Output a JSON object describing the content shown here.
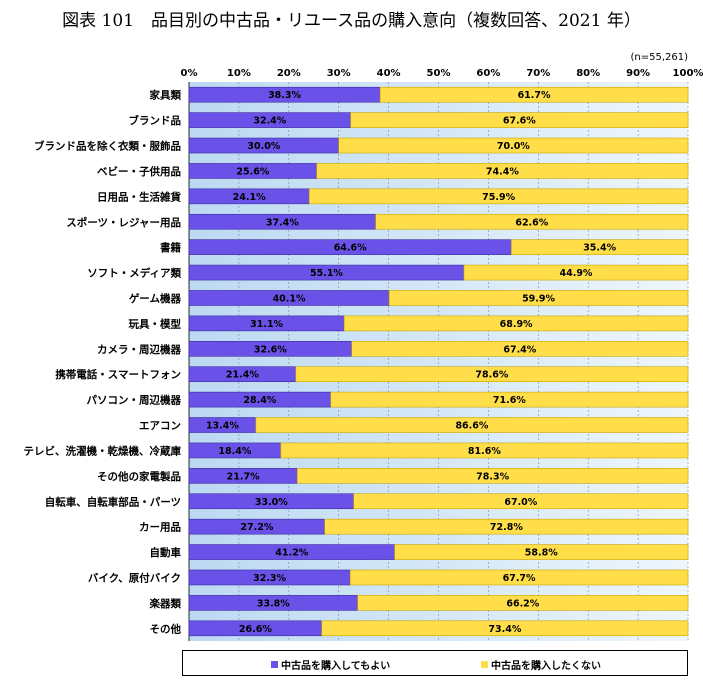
{
  "title": "図表 101　品目別の中古品・リユース品の購入意向（複数回答、2021 年）",
  "note": "(n=55,261)",
  "colors": {
    "bar_a": "#6a52e8",
    "bar_b": "#ffde4a"
  },
  "chart_data": {
    "type": "bar",
    "orientation": "horizontal",
    "stacked": true,
    "xlim": [
      0,
      100
    ],
    "x_ticks": [
      "0%",
      "10%",
      "20%",
      "30%",
      "40%",
      "50%",
      "60%",
      "70%",
      "80%",
      "90%",
      "100%"
    ],
    "legend_position": "bottom",
    "categories": [
      "家具類",
      "ブランド品",
      "ブランド品を除く衣類・服飾品",
      "ベビー・子供用品",
      "日用品・生活雑貨",
      "スポーツ・レジャー用品",
      "書籍",
      "ソフト・メディア類",
      "ゲーム機器",
      "玩具・模型",
      "カメラ・周辺機器",
      "携帯電話・スマートフォン",
      "パソコン・周辺機器",
      "エアコン",
      "テレビ、洗濯機・乾燥機、冷蔵庫",
      "その他の家電製品",
      "自転車、自転車部品・パーツ",
      "カー用品",
      "自動車",
      "バイク、原付バイク",
      "楽器類",
      "その他"
    ],
    "series": [
      {
        "name": "中古品を購入してもよい",
        "values": [
          38.3,
          32.4,
          30.0,
          25.6,
          24.1,
          37.4,
          64.6,
          55.1,
          40.1,
          31.1,
          32.6,
          21.4,
          28.4,
          13.4,
          18.4,
          21.7,
          33.0,
          27.2,
          41.2,
          32.3,
          33.8,
          26.6
        ],
        "labels": [
          "38.3%",
          "32.4%",
          "30.0%",
          "25.6%",
          "24.1%",
          "37.4%",
          "64.6%",
          "55.1%",
          "40.1%",
          "31.1%",
          "32.6%",
          "21.4%",
          "28.4%",
          "13.4%",
          "18.4%",
          "21.7%",
          "33.0%",
          "27.2%",
          "41.2%",
          "32.3%",
          "33.8%",
          "26.6%"
        ]
      },
      {
        "name": "中古品を購入したくない",
        "values": [
          61.7,
          67.6,
          70.0,
          74.4,
          75.9,
          62.6,
          35.4,
          44.9,
          59.9,
          68.9,
          67.4,
          78.6,
          71.6,
          86.6,
          81.6,
          78.3,
          67.0,
          72.8,
          58.8,
          67.7,
          66.2,
          73.4
        ],
        "labels": [
          "61.7%",
          "67.6%",
          "70.0%",
          "74.4%",
          "75.9%",
          "62.6%",
          "35.4%",
          "44.9%",
          "59.9%",
          "68.9%",
          "67.4%",
          "78.6%",
          "71.6%",
          "86.6%",
          "81.6%",
          "78.3%",
          "67.0%",
          "72.8%",
          "58.8%",
          "67.7%",
          "66.2%",
          "73.4%"
        ]
      }
    ]
  }
}
